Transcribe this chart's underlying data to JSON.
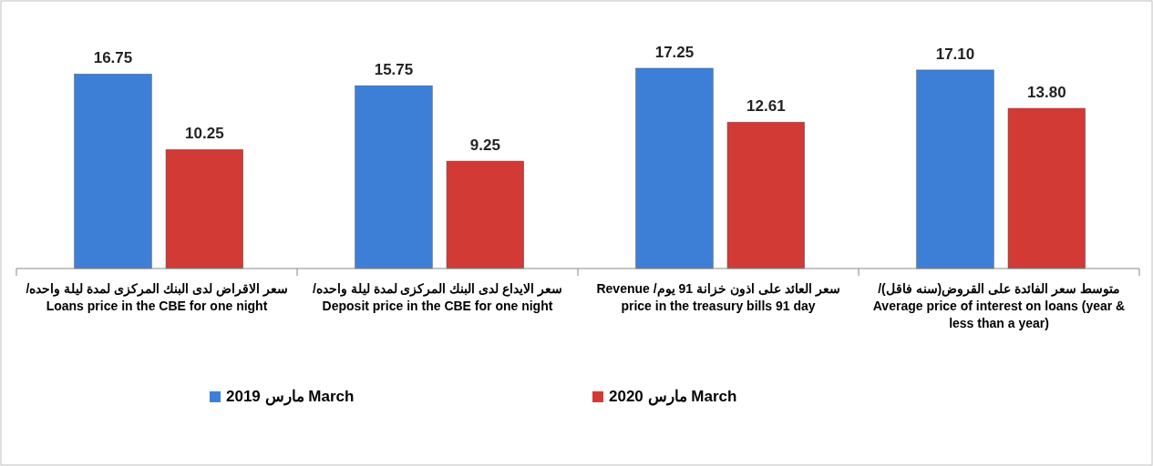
{
  "chart_data": {
    "type": "bar",
    "categories": [
      "سعر الاقراض لدى البنك المركزى لمدة ليلة واحده/ Loans price in the CBE for one night",
      "سعر الايداع لدى البنك المركزى لمدة ليلة واحده/ Deposit price in the CBE for one night",
      "سعر العائد على اذون خزانة 91 يوم/ Revenue price in the treasury bills 91 day",
      "متوسط سعر الفائدة على القروض(سنه فاقل)/ Average price of interest on loans (year & less than a year)"
    ],
    "series": [
      {
        "name": "مارس 2019 March",
        "color": "#3d7fd6",
        "values": [
          16.75,
          15.75,
          17.25,
          17.1
        ],
        "value_labels": [
          "16.75",
          "15.75",
          "17.25",
          "17.10"
        ]
      },
      {
        "name": "مارس 2020 March",
        "color": "#d23a36",
        "values": [
          10.25,
          9.25,
          12.61,
          13.8
        ],
        "value_labels": [
          "10.25",
          "9.25",
          "12.61",
          "13.80"
        ]
      }
    ],
    "data_labels": true,
    "legend": "bottom",
    "grid": false
  }
}
